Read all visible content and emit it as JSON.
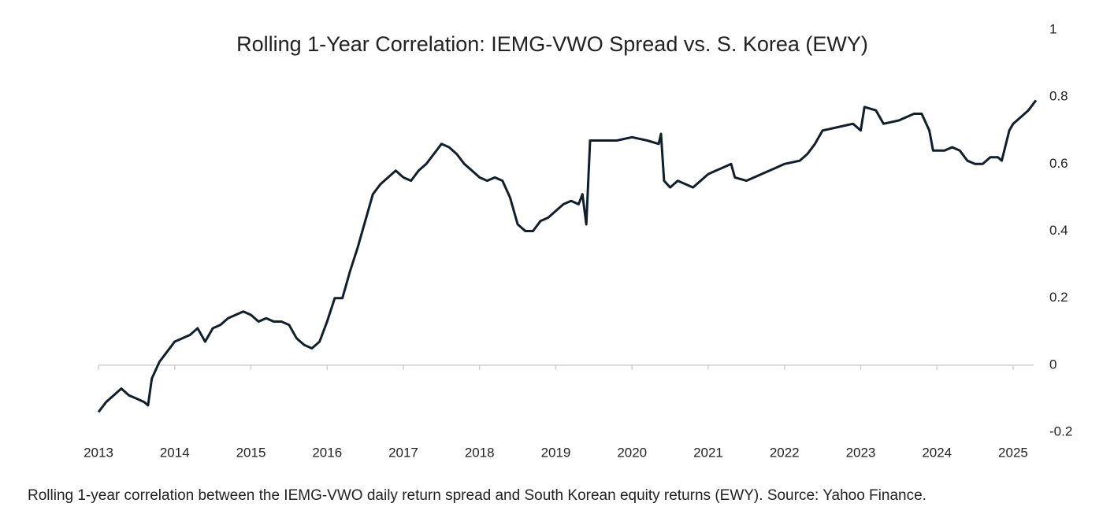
{
  "chart_data": {
    "type": "line",
    "title": "Rolling 1-Year Correlation: IEMG-VWO Spread vs. S. Korea (EWY)",
    "caption": "Rolling 1-year correlation between the IEMG-VWO daily return spread and South Korean equity returns (EWY). Source: Yahoo Finance.",
    "xlim": [
      2013,
      2025.3
    ],
    "xticks": [
      2013,
      2014,
      2015,
      2016,
      2017,
      2018,
      2019,
      2020,
      2021,
      2022,
      2023,
      2024,
      2025
    ],
    "ylim": [
      -0.2,
      1
    ],
    "yticks": [
      -0.2,
      0,
      0.2,
      0.4,
      0.6,
      0.8,
      1
    ],
    "grid": false,
    "x": [
      2013.0,
      2013.1,
      2013.2,
      2013.3,
      2013.4,
      2013.5,
      2013.6,
      2013.65,
      2013.7,
      2013.8,
      2013.9,
      2014.0,
      2014.1,
      2014.2,
      2014.3,
      2014.4,
      2014.5,
      2014.6,
      2014.7,
      2014.8,
      2014.9,
      2015.0,
      2015.1,
      2015.2,
      2015.3,
      2015.4,
      2015.5,
      2015.6,
      2015.7,
      2015.8,
      2015.9,
      2016.0,
      2016.1,
      2016.2,
      2016.3,
      2016.4,
      2016.5,
      2016.6,
      2016.7,
      2016.8,
      2016.9,
      2017.0,
      2017.1,
      2017.2,
      2017.3,
      2017.4,
      2017.5,
      2017.6,
      2017.7,
      2017.8,
      2017.9,
      2018.0,
      2018.1,
      2018.2,
      2018.3,
      2018.4,
      2018.5,
      2018.6,
      2018.7,
      2018.8,
      2018.9,
      2019.0,
      2019.1,
      2019.2,
      2019.3,
      2019.35,
      2019.4,
      2019.45,
      2019.6,
      2019.8,
      2020.0,
      2020.2,
      2020.35,
      2020.38,
      2020.42,
      2020.5,
      2020.6,
      2020.8,
      2020.9,
      2021.0,
      2021.1,
      2021.2,
      2021.3,
      2021.35,
      2021.5,
      2021.7,
      2021.9,
      2022.0,
      2022.2,
      2022.3,
      2022.4,
      2022.5,
      2022.7,
      2022.9,
      2023.0,
      2023.05,
      2023.2,
      2023.3,
      2023.5,
      2023.6,
      2023.7,
      2023.8,
      2023.9,
      2023.95,
      2024.1,
      2024.2,
      2024.3,
      2024.4,
      2024.5,
      2024.6,
      2024.7,
      2024.8,
      2024.85,
      2024.95,
      2025.0,
      2025.1,
      2025.2,
      2025.3
    ],
    "series": [
      {
        "color": "#0f1f2e",
        "values": [
          -0.14,
          -0.11,
          -0.09,
          -0.07,
          -0.09,
          -0.1,
          -0.11,
          -0.12,
          -0.04,
          0.01,
          0.04,
          0.07,
          0.08,
          0.09,
          0.11,
          0.07,
          0.11,
          0.12,
          0.14,
          0.15,
          0.16,
          0.15,
          0.13,
          0.14,
          0.13,
          0.13,
          0.12,
          0.08,
          0.06,
          0.05,
          0.07,
          0.13,
          0.2,
          0.2,
          0.28,
          0.35,
          0.43,
          0.51,
          0.54,
          0.56,
          0.58,
          0.56,
          0.55,
          0.58,
          0.6,
          0.63,
          0.66,
          0.65,
          0.63,
          0.6,
          0.58,
          0.56,
          0.55,
          0.56,
          0.55,
          0.5,
          0.42,
          0.4,
          0.4,
          0.43,
          0.44,
          0.46,
          0.48,
          0.49,
          0.48,
          0.51,
          0.42,
          0.67,
          0.67,
          0.67,
          0.68,
          0.67,
          0.66,
          0.69,
          0.55,
          0.53,
          0.55,
          0.53,
          0.55,
          0.57,
          0.58,
          0.59,
          0.6,
          0.56,
          0.55,
          0.57,
          0.59,
          0.6,
          0.61,
          0.63,
          0.66,
          0.7,
          0.71,
          0.72,
          0.7,
          0.77,
          0.76,
          0.72,
          0.73,
          0.74,
          0.75,
          0.75,
          0.7,
          0.64,
          0.64,
          0.65,
          0.64,
          0.61,
          0.6,
          0.6,
          0.62,
          0.62,
          0.61,
          0.7,
          0.72,
          0.74,
          0.76,
          0.79
        ]
      }
    ]
  }
}
